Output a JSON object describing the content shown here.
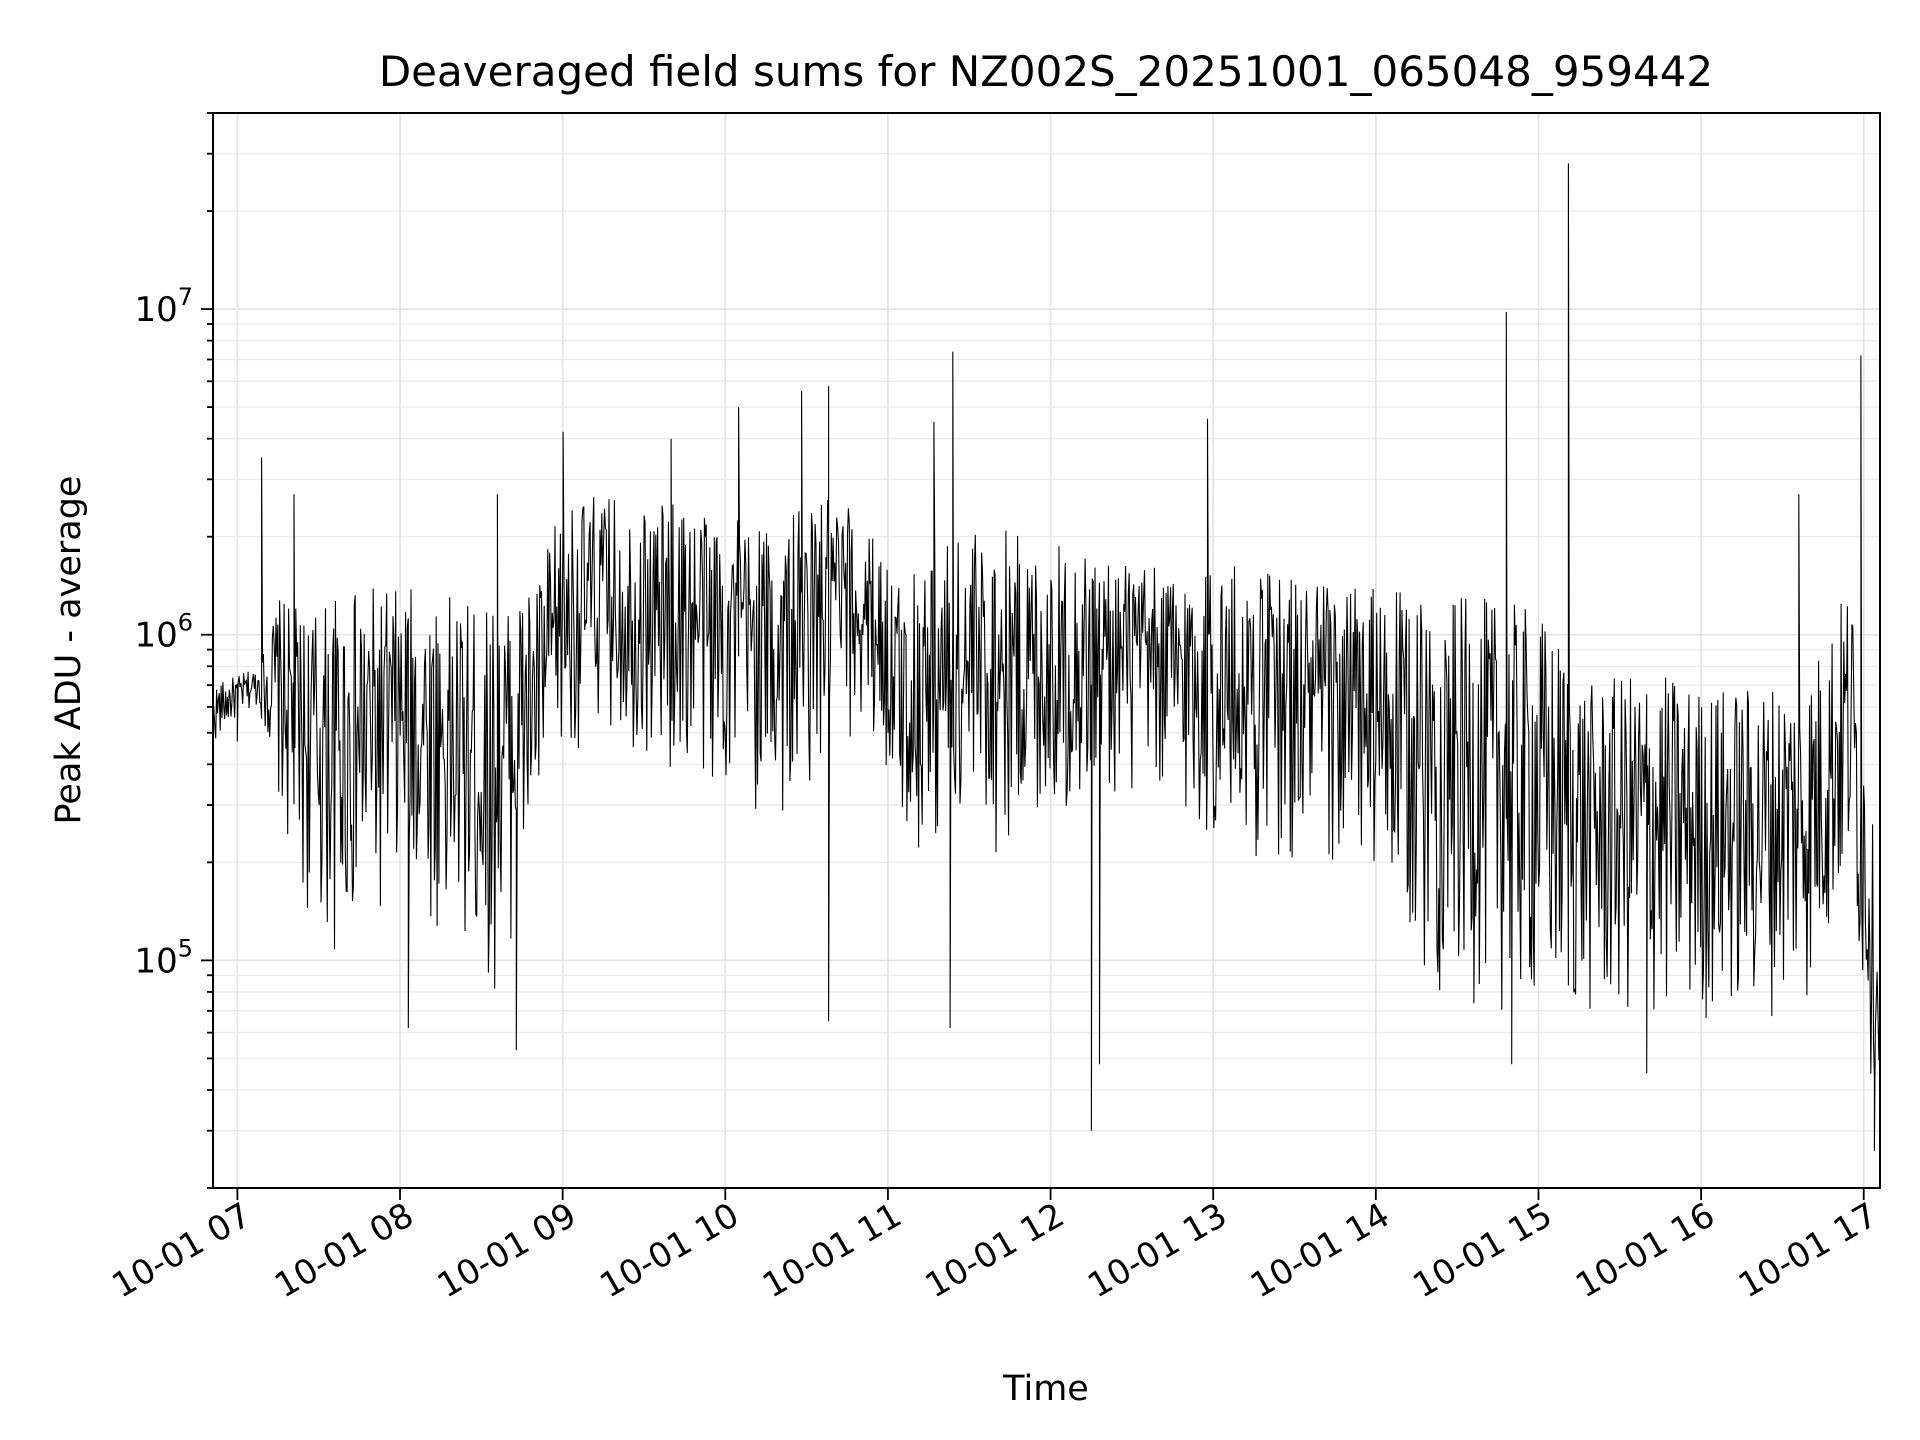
{
  "chart_data": {
    "type": "line",
    "title": "Deaveraged field sums for NZ002S_20251001_065048_959442",
    "xlabel": "Time",
    "ylabel": "Peak ADU - average",
    "yscale": "log",
    "ylim": [
      20000,
      40000000
    ],
    "xlim": [
      "2025-10-01T06:51",
      "2025-10-01T17:06"
    ],
    "x_tick_labels": [
      "10-01 07",
      "10-01 08",
      "10-01 09",
      "10-01 10",
      "10-01 11",
      "10-01 12",
      "10-01 13",
      "10-01 14",
      "10-01 15",
      "10-01 16",
      "10-01 17"
    ],
    "y_ticks": [
      {
        "base": "10",
        "exp": "5",
        "value": 100000
      },
      {
        "base": "10",
        "exp": "6",
        "value": 1000000
      },
      {
        "base": "10",
        "exp": "7",
        "value": 10000000
      }
    ],
    "grid": true,
    "line_color": "#000000",
    "series": [
      {
        "x": [
          "2025-10-01T06:51",
          "2025-10-01T07:00",
          "2025-10-01T07:08",
          "2025-10-01T07:15",
          "2025-10-01T07:22",
          "2025-10-01T07:35",
          "2025-10-01T07:50",
          "2025-10-01T08:05",
          "2025-10-01T08:20",
          "2025-10-01T08:35",
          "2025-10-01T08:50",
          "2025-10-01T09:00",
          "2025-10-01T09:15",
          "2025-10-01T09:30",
          "2025-10-01T09:45",
          "2025-10-01T10:00",
          "2025-10-01T10:20",
          "2025-10-01T10:40",
          "2025-10-01T10:55",
          "2025-10-01T11:05",
          "2025-10-01T11:20",
          "2025-10-01T11:40",
          "2025-10-01T12:00",
          "2025-10-01T12:20",
          "2025-10-01T12:40",
          "2025-10-01T13:00",
          "2025-10-01T13:20",
          "2025-10-01T13:40",
          "2025-10-01T14:00",
          "2025-10-01T14:20",
          "2025-10-01T14:40",
          "2025-10-01T15:00",
          "2025-10-01T15:20",
          "2025-10-01T15:40",
          "2025-10-01T16:00",
          "2025-10-01T16:20",
          "2025-10-01T16:40",
          "2025-10-01T16:55",
          "2025-10-01T17:03",
          "2025-10-01T17:06"
        ],
        "low": [
          450000,
          550000,
          600000,
          300000,
          150000,
          100000,
          120000,
          150000,
          100000,
          80000,
          200000,
          400000,
          500000,
          400000,
          350000,
          300000,
          250000,
          400000,
          500000,
          200000,
          200000,
          200000,
          250000,
          300000,
          300000,
          200000,
          200000,
          180000,
          150000,
          80000,
          70000,
          60000,
          60000,
          60000,
          60000,
          65000,
          70000,
          150000,
          40000,
          50000
        ],
        "high": [
          700000,
          750000,
          800000,
          1300000,
          1200000,
          1300000,
          1400000,
          1400000,
          1300000,
          1200000,
          1500000,
          2500000,
          2700000,
          2500000,
          2600000,
          2400000,
          2200000,
          2800000,
          2000000,
          1500000,
          2000000,
          2200000,
          1900000,
          1800000,
          1600000,
          1700000,
          1600000,
          1500000,
          1400000,
          1300000,
          1300000,
          1200000,
          700000,
          800000,
          700000,
          700000,
          800000,
          1500000,
          300000,
          70000
        ]
      }
    ],
    "spikes": [
      {
        "x": "2025-10-01T07:09",
        "y": 3500000
      },
      {
        "x": "2025-10-01T07:21",
        "y": 2700000
      },
      {
        "x": "2025-10-01T08:36",
        "y": 2700000
      },
      {
        "x": "2025-10-01T09:00",
        "y": 4200000
      },
      {
        "x": "2025-10-01T09:40",
        "y": 4000000
      },
      {
        "x": "2025-10-01T10:05",
        "y": 5000000
      },
      {
        "x": "2025-10-01T10:28",
        "y": 5600000
      },
      {
        "x": "2025-10-01T10:38",
        "y": 5800000
      },
      {
        "x": "2025-10-01T11:17",
        "y": 4500000
      },
      {
        "x": "2025-10-01T11:24",
        "y": 7400000
      },
      {
        "x": "2025-10-01T12:17",
        "y": 1000000
      },
      {
        "x": "2025-10-01T12:58",
        "y": 4600000
      },
      {
        "x": "2025-10-01T14:48",
        "y": 9800000
      },
      {
        "x": "2025-10-01T15:11",
        "y": 28000000
      },
      {
        "x": "2025-10-01T16:36",
        "y": 2700000
      },
      {
        "x": "2025-10-01T16:59",
        "y": 7200000
      }
    ],
    "dips": [
      {
        "x": "2025-10-01T07:00",
        "y": 470000
      },
      {
        "x": "2025-10-01T08:03",
        "y": 62000
      },
      {
        "x": "2025-10-01T08:43",
        "y": 53000
      },
      {
        "x": "2025-10-01T10:38",
        "y": 65000
      },
      {
        "x": "2025-10-01T11:23",
        "y": 62000
      },
      {
        "x": "2025-10-01T12:15",
        "y": 30000
      },
      {
        "x": "2025-10-01T12:18",
        "y": 48000
      },
      {
        "x": "2025-10-01T14:50",
        "y": 48000
      },
      {
        "x": "2025-10-01T15:40",
        "y": 45000
      },
      {
        "x": "2025-10-01T17:04",
        "y": 26000
      }
    ]
  }
}
